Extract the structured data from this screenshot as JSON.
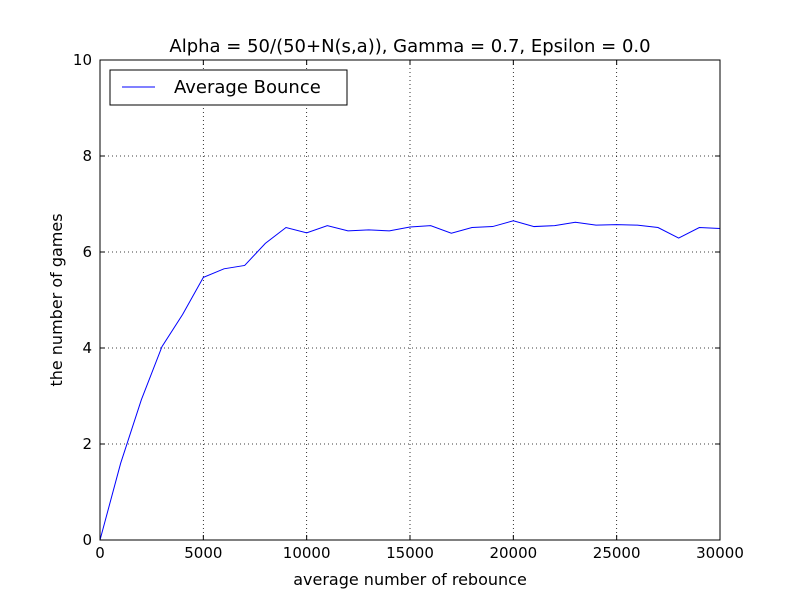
{
  "chart_data": {
    "type": "line",
    "title": "Alpha = 50/(50+N(s,a)), Gamma = 0.7, Epsilon = 0.0",
    "xlabel": "average number of rebounce",
    "ylabel": "the number of games",
    "xlim": [
      0,
      30000
    ],
    "ylim": [
      0,
      10
    ],
    "x_ticks": [
      "0",
      "5000",
      "10000",
      "15000",
      "20000",
      "25000",
      "30000"
    ],
    "y_ticks": [
      "0",
      "2",
      "4",
      "6",
      "8",
      "10"
    ],
    "grid": true,
    "legend_position": "top-left",
    "series": [
      {
        "name": "Average Bounce",
        "color": "#0000ff",
        "x": [
          0,
          1000,
          2000,
          3000,
          4000,
          5000,
          6000,
          7000,
          8000,
          9000,
          10000,
          11000,
          12000,
          13000,
          14000,
          15000,
          16000,
          17000,
          18000,
          19000,
          20000,
          21000,
          22000,
          23000,
          24000,
          25000,
          26000,
          27000,
          28000,
          29000,
          30000
        ],
        "y": [
          0.0,
          1.6,
          2.92,
          4.03,
          4.7,
          5.47,
          5.65,
          5.72,
          6.18,
          6.51,
          6.4,
          6.55,
          6.44,
          6.46,
          6.44,
          6.52,
          6.55,
          6.39,
          6.51,
          6.53,
          6.65,
          6.53,
          6.55,
          6.62,
          6.56,
          6.57,
          6.56,
          6.51,
          6.29,
          6.51,
          6.49
        ]
      }
    ]
  }
}
